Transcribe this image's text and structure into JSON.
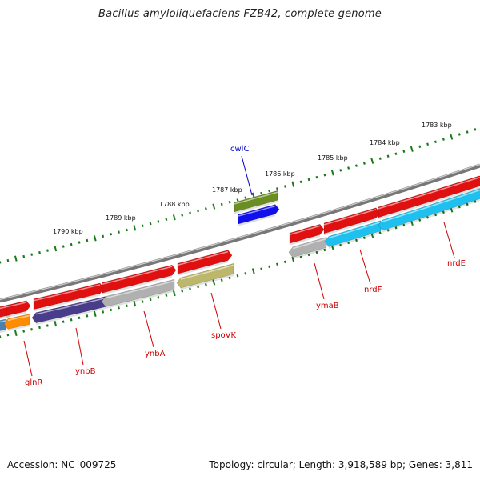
{
  "title": "Bacillus amyloliquefaciens FZB42, complete genome",
  "footer": {
    "accession": "Accession: NC_009725",
    "summary": "Topology: circular; Length: 3,918,589 bp; Genes: 3,811"
  },
  "kbp_labels": [
    "1783 kbp",
    "1784 kbp",
    "1785 kbp",
    "1786 kbp",
    "1787 kbp",
    "1788 kbp",
    "1789 kbp",
    "1790 kbp"
  ],
  "gene_labels": {
    "cwlC": "cwlC",
    "glnR": "glnR",
    "ynbB": "ynbB",
    "ynbA": "ynbA",
    "spoVK": "spoVK",
    "ymaB": "ymaB",
    "nrdF": "nrdF",
    "nrdE": "nrdE"
  },
  "colors": {
    "backbone": "#7a7a7a",
    "ticks": "#1a7a1a",
    "cds": "#e01010",
    "label_red": "#cc0000",
    "label_blue": "#0000cc",
    "cwlC": "#6b8e23",
    "glnR": "#ff8c00",
    "ynbB": "#483d8b",
    "ynbA": "#b0b0b0",
    "spoVK": "#bdb76b",
    "ymaB": "#b0b0b0",
    "nrdF": "#1ec0f0",
    "nrdE": "#1ec0f0",
    "blue_feature": "#1010ee",
    "steelblue_feature": "#4682b4"
  }
}
